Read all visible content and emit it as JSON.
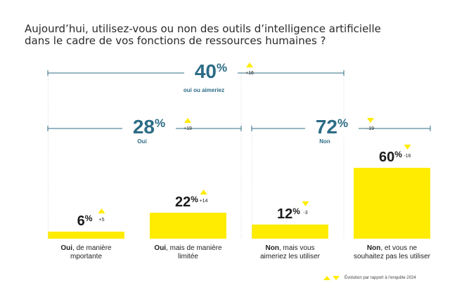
{
  "title_line1": "Aujourd’hui, utilisez-vous ou non des outils d’intelligence artificielle",
  "title_line2": "dans le cadre de vos fonctions de ressources humaines ?",
  "colors": {
    "accent": "#ffec00",
    "bracket": "#2d6c86",
    "text_dark": "#1b1b1b",
    "title": "#2a2a2a"
  },
  "chart_data": {
    "type": "bar",
    "categories": [
      {
        "bold": "Oui",
        "rest": ", de manière\nmportante"
      },
      {
        "bold": "Oui",
        "rest": ", mais de manière\nlimitée"
      },
      {
        "bold": "Non",
        "rest": ", mais vous\naimeriez les utiliser"
      },
      {
        "bold": "Non",
        "rest": ", et vous ne\nsouhaitez pas les utiliser"
      }
    ],
    "values": [
      6,
      22,
      12,
      60
    ],
    "value_labels": [
      "6",
      "22",
      "12",
      "60"
    ],
    "percent_sign": "%",
    "changes": [
      "+5",
      "+14",
      "-3",
      "-16"
    ],
    "change_direction": [
      "up",
      "up",
      "down",
      "down"
    ],
    "groups": [
      {
        "value": "40",
        "percent": "%",
        "change": "+16",
        "direction": "up",
        "label": "oui ou aimeriez",
        "spans": [
          0,
          2
        ]
      },
      {
        "value": "28",
        "percent": "%",
        "change": "+19",
        "direction": "up",
        "label": "Oui",
        "spans": [
          0,
          1
        ]
      },
      {
        "value": "72",
        "percent": "%",
        "change": "-19",
        "direction": "down",
        "label": "Non",
        "spans": [
          2,
          3
        ]
      }
    ],
    "legend_text": "Évolution par rapport à l’enquête 2024"
  }
}
